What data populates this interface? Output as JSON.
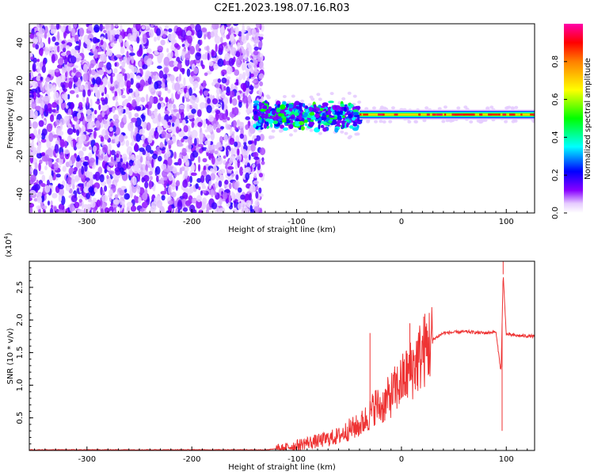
{
  "title": "C2E1.2023.198.07.16.R03",
  "chart_data": [
    {
      "type": "heatmap",
      "xlabel": "Height of straight line (km)",
      "ylabel": "Frequency (Hz)",
      "xlim": [
        -355,
        127
      ],
      "ylim": [
        -50,
        50
      ],
      "x_ticks": [
        -300,
        -200,
        -100,
        0,
        100
      ],
      "y_ticks": [
        -40,
        -20,
        0,
        20,
        40
      ],
      "colorbar": {
        "label": "Normalized spectral amplitude",
        "range": [
          0,
          1
        ],
        "ticks": [
          "0.0",
          "0.2",
          "0.4",
          "0.6",
          "0.8"
        ],
        "colormap": "rainbow (white, violet, blue, cyan, green, yellow, red, magenta)"
      },
      "features": [
        {
          "x_range": [
            -355,
            -132
          ],
          "description": "broadband noise spread across full frequency range (violet speckle)"
        },
        {
          "x_range": [
            -140,
            -40
          ],
          "freq_center": 1.5,
          "freq_halfwidth": 8,
          "description": "scattered band near 0 Hz with cyan/green blobs"
        },
        {
          "x_range": [
            -40,
            127
          ],
          "freq_center": 2,
          "freq_halfwidth": 1.5,
          "description": "narrow strong line near 2 Hz (red/yellow core)"
        }
      ]
    },
    {
      "type": "line",
      "xlabel": "Height of straight line (km)",
      "ylabel": "SNR (10 * v/v)",
      "y_multiplier": "(x10^4)",
      "xlim": [
        -355,
        127
      ],
      "ylim": [
        0,
        2.9
      ],
      "x_ticks": [
        -300,
        -200,
        -100,
        0,
        100
      ],
      "y_ticks": [
        0.5,
        1.0,
        1.5,
        2.0,
        2.5
      ],
      "color": "#ee3333",
      "series": [
        {
          "x": [
            -355,
            -300,
            -200,
            -130,
            -115,
            -100,
            -90,
            -80,
            -70,
            -60,
            -50,
            -40,
            -30,
            -25,
            -20,
            -10,
            0,
            10,
            20,
            30,
            40,
            60,
            80,
            90,
            95,
            97,
            100,
            110,
            127
          ],
          "y": [
            0.01,
            0.01,
            0.01,
            0.01,
            0.03,
            0.08,
            0.12,
            0.14,
            0.18,
            0.22,
            0.32,
            0.38,
            0.55,
            0.7,
            0.65,
            0.85,
            1.05,
            1.25,
            1.5,
            1.7,
            1.8,
            1.82,
            1.8,
            1.82,
            1.2,
            2.7,
            1.78,
            1.76,
            1.75
          ]
        }
      ],
      "spikes": [
        {
          "x": -30,
          "y": 1.8
        },
        {
          "x": 8,
          "y": 1.95
        },
        {
          "x": 97,
          "y": 2.9
        },
        {
          "x": 96,
          "y": 0.3
        }
      ]
    }
  ]
}
